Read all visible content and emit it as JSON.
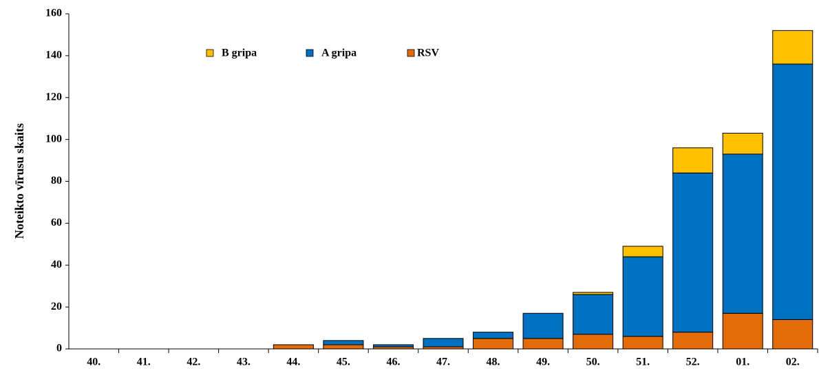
{
  "chart_data": {
    "type": "stacked_bar",
    "y_label": "Noteikto vīrusu skaits",
    "categories": [
      "40.",
      "41.",
      "42.",
      "43.",
      "44.",
      "45.",
      "46.",
      "47.",
      "48.",
      "49.",
      "50.",
      "51.",
      "52.",
      "01.",
      "02."
    ],
    "series": [
      {
        "name": "RSV",
        "color": "#e36c09",
        "values": [
          0,
          0,
          0,
          0,
          2,
          2,
          1,
          1,
          5,
          5,
          7,
          6,
          8,
          17,
          14
        ]
      },
      {
        "name": "A gripa",
        "color": "#0070c0",
        "values": [
          0,
          0,
          0,
          0,
          0,
          2,
          1,
          4,
          3,
          12,
          19,
          38,
          76,
          76,
          122
        ]
      },
      {
        "name": "B gripa",
        "color": "#ffc000",
        "values": [
          0,
          0,
          0,
          0,
          0,
          0,
          0,
          0,
          0,
          0,
          1,
          5,
          12,
          10,
          16
        ]
      }
    ],
    "ylim": [
      0,
      160
    ],
    "yticks": [
      0,
      20,
      40,
      60,
      80,
      100,
      120,
      140,
      160
    ],
    "legend": "top"
  }
}
